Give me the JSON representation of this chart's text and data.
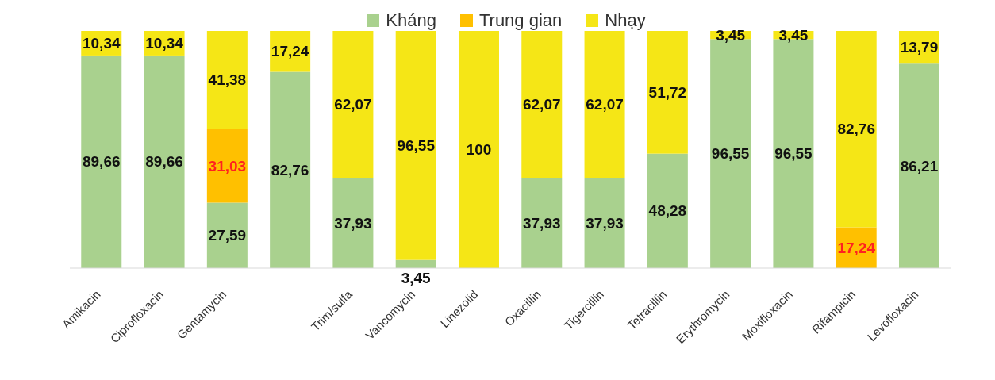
{
  "chart_data": {
    "type": "bar",
    "stacked": true,
    "categories": [
      "Amikacin",
      "Ciprofloxacin",
      "Gentamycin",
      null,
      "Trim/sulfa",
      "Vancomycin",
      "Linezolid",
      "Oxacillin",
      "Tigercillin",
      "Tetracillin",
      "Erythromycin",
      "Moxifloxacin",
      "Rifampicin",
      "Levofloxacin"
    ],
    "series": [
      {
        "name": "Kháng",
        "color": "#a9d18e",
        "values": [
          89.66,
          89.66,
          27.59,
          82.76,
          37.93,
          3.45,
          0,
          37.93,
          37.93,
          48.28,
          96.55,
          96.55,
          0,
          86.21
        ],
        "value_labels": [
          "89,66",
          "89,66",
          "27,59",
          "82,76",
          "37,93",
          "3,45",
          null,
          "37,93",
          "37,93",
          "48,28",
          "96,55",
          "96,55",
          null,
          "86,21"
        ]
      },
      {
        "name": "Trung gian",
        "color": "#ffc000",
        "values": [
          0,
          0,
          31.03,
          0,
          0,
          0,
          0,
          0,
          0,
          0,
          0,
          0,
          17.24,
          0
        ],
        "value_labels": [
          null,
          null,
          "31,03",
          null,
          null,
          null,
          null,
          null,
          null,
          null,
          null,
          null,
          "17,24",
          null
        ]
      },
      {
        "name": "Nhạy",
        "color": "#f5e616",
        "values": [
          10.34,
          10.34,
          41.38,
          17.24,
          62.07,
          96.55,
          100,
          62.07,
          62.07,
          51.72,
          3.45,
          3.45,
          82.76,
          13.79
        ],
        "value_labels": [
          "10,34",
          "10,34",
          "41,38",
          "17,24",
          "62,07",
          "96,55",
          "100",
          "62,07",
          "62,07",
          "51,72",
          "3,45",
          "3,45",
          "82,76",
          "13,79"
        ]
      }
    ],
    "ylim": [
      0,
      100
    ],
    "tick_labels": "x",
    "legend": "top"
  }
}
